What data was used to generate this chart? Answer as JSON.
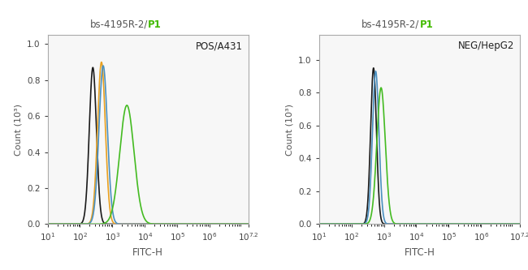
{
  "title_part1": "bs-4195R-2/",
  "title_part2": "P1",
  "title_color1": "#555555",
  "title_color2": "#44bb00",
  "panel1_label": "POS/A431",
  "panel2_label": "NEG/HepG2",
  "xlabel": "FITC-H",
  "ylabel": "Count (10³)",
  "bg_color": "#ffffff",
  "plot_bg_color": "#f7f7f7",
  "colors_panel1": {
    "black": "#1a1a1a",
    "orange": "#e8a020",
    "blue": "#4a90c0",
    "green": "#44bb22"
  },
  "colors_panel2": {
    "black": "#1a1a1a",
    "blue": "#4a90c0",
    "green": "#44bb22"
  },
  "panel1_ylim": [
    0,
    1.05
  ],
  "panel1_yticks": [
    0,
    0.2,
    0.4,
    0.6,
    0.8,
    1.0
  ],
  "panel2_ylim": [
    0,
    1.15
  ],
  "panel2_yticks": [
    0,
    0.2,
    0.4,
    0.6,
    0.8,
    1.0
  ]
}
